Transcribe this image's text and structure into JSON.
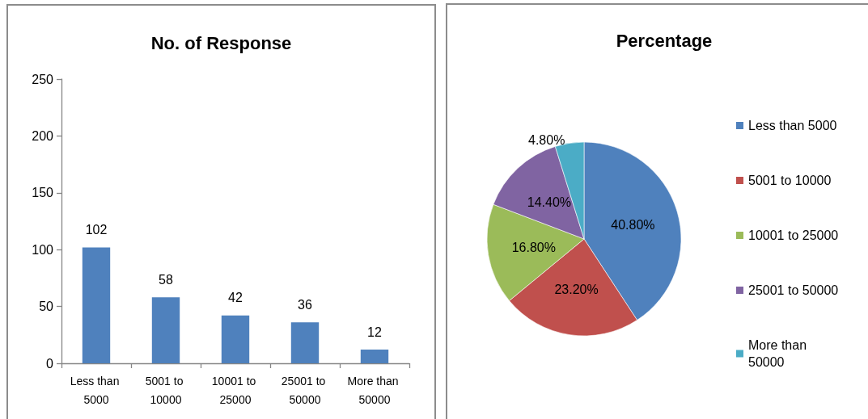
{
  "chart_data": [
    {
      "type": "bar",
      "title": "No. of Response",
      "categories": [
        "Less than 5000",
        "5001 to 10000",
        "10001 to 25000",
        "25001 to 50000",
        "More than 50000"
      ],
      "values": [
        102,
        58,
        42,
        36,
        12
      ],
      "color": "#4f81bd",
      "ylim": [
        0,
        250
      ],
      "yticks": [
        0,
        50,
        100,
        150,
        200,
        250
      ],
      "grid": false,
      "data_labels": true
    },
    {
      "type": "pie",
      "title": "Percentage",
      "categories": [
        "Less than 5000",
        "5001 to 10000",
        "10001 to 25000",
        "25001 to 50000",
        "More than 50000"
      ],
      "values": [
        40.8,
        23.2,
        16.8,
        14.4,
        4.8
      ],
      "colors": [
        "#4f81bd",
        "#c0504d",
        "#9bbb59",
        "#8064a2",
        "#4bacc6"
      ],
      "value_labels": [
        "40.80%",
        "23.20%",
        "16.80%",
        "14.40%",
        "4.80%"
      ],
      "legend": "right"
    }
  ]
}
